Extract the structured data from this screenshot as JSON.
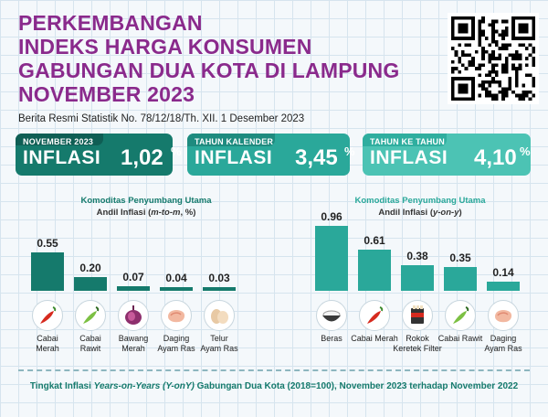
{
  "title": {
    "line1": "PERKEMBANGAN",
    "line2": "INDEKS HARGA KONSUMEN",
    "line3": "GABUNGAN DUA KOTA DI LAMPUNG",
    "line4": "NOVEMBER 2023"
  },
  "subtitle": "Berita Resmi Statistik No. 78/12/18/Th. XII. 1 Desember 2023",
  "cards": [
    {
      "tag": "NOVEMBER 2023",
      "word": "INFLASI",
      "value": "1,02",
      "unit": "%"
    },
    {
      "tag": "TAHUN KALENDER",
      "word": "INFLASI",
      "value": "3,45",
      "unit": "%"
    },
    {
      "tag": "TAHUN KE TAHUN",
      "word": "INFLASI",
      "value": "4,10",
      "unit": "%"
    }
  ],
  "chart_left": {
    "title": "Komoditas Penyumbang Utama",
    "sub_prefix": "Andil Inflasi (",
    "sub_italic": "m-to-m",
    "sub_suffix": ", %)"
  },
  "chart_right": {
    "title": "Komoditas Penyumbang Utama",
    "sub_prefix": "Andil Inflasi (",
    "sub_italic": "y-on-y",
    "sub_suffix": ")"
  },
  "chart_data": [
    {
      "type": "bar",
      "title": "Komoditas Penyumbang Utama Andil Inflasi (m-to-m, %)",
      "categories": [
        "Cabai Merah",
        "Cabai Rawit",
        "Bawang Merah",
        "Daging Ayam Ras",
        "Telur Ayam Ras"
      ],
      "category_lines": [
        [
          "Cabai",
          "Merah"
        ],
        [
          "Cabai",
          "Rawit"
        ],
        [
          "Bawang",
          "Merah"
        ],
        [
          "Daging",
          "Ayam Ras"
        ],
        [
          "Telur",
          "Ayam Ras"
        ]
      ],
      "values": [
        0.55,
        0.2,
        0.07,
        0.04,
        0.03
      ],
      "value_labels": [
        "0.55",
        "0.20",
        "0.07",
        "0.04",
        "0.03"
      ],
      "icons": [
        "chili-red-icon",
        "chili-green-icon",
        "shallot-icon",
        "chicken-meat-icon",
        "egg-icon"
      ],
      "color": "#157a6c"
    },
    {
      "type": "bar",
      "title": "Komoditas Penyumbang Utama Andil Inflasi (y-on-y)",
      "categories": [
        "Beras",
        "Cabai Merah",
        "Rokok Keretek Filter",
        "Cabai Rawit",
        "Daging Ayam Ras"
      ],
      "category_lines": [
        [
          "Beras"
        ],
        [
          "Cabai Merah"
        ],
        [
          "Rokok",
          "Keretek Filter"
        ],
        [
          "Cabai Rawit"
        ],
        [
          "Daging",
          "Ayam Ras"
        ]
      ],
      "values": [
        0.96,
        0.61,
        0.38,
        0.35,
        0.14
      ],
      "value_labels": [
        "0.96",
        "0.61",
        "0.38",
        "0.35",
        "0.14"
      ],
      "icons": [
        "rice-bowl-icon",
        "chili-red-icon",
        "cigarette-pack-icon",
        "chili-green-icon",
        "chicken-meat-icon"
      ],
      "color": "#2aa89a"
    }
  ],
  "footer": {
    "prefix": "Tingkat Inflasi ",
    "italic": "Years-on-Years (Y-onY)",
    "suffix": " Gabungan Dua Kota (2018=100), November 2023 terhadap November 2022"
  },
  "colors": {
    "title": "#8a2a8c",
    "teal_dark": "#157a6c",
    "teal_mid": "#2aa89a",
    "teal_light": "#4cc3b4"
  },
  "qr_icon": "qr-code-icon"
}
